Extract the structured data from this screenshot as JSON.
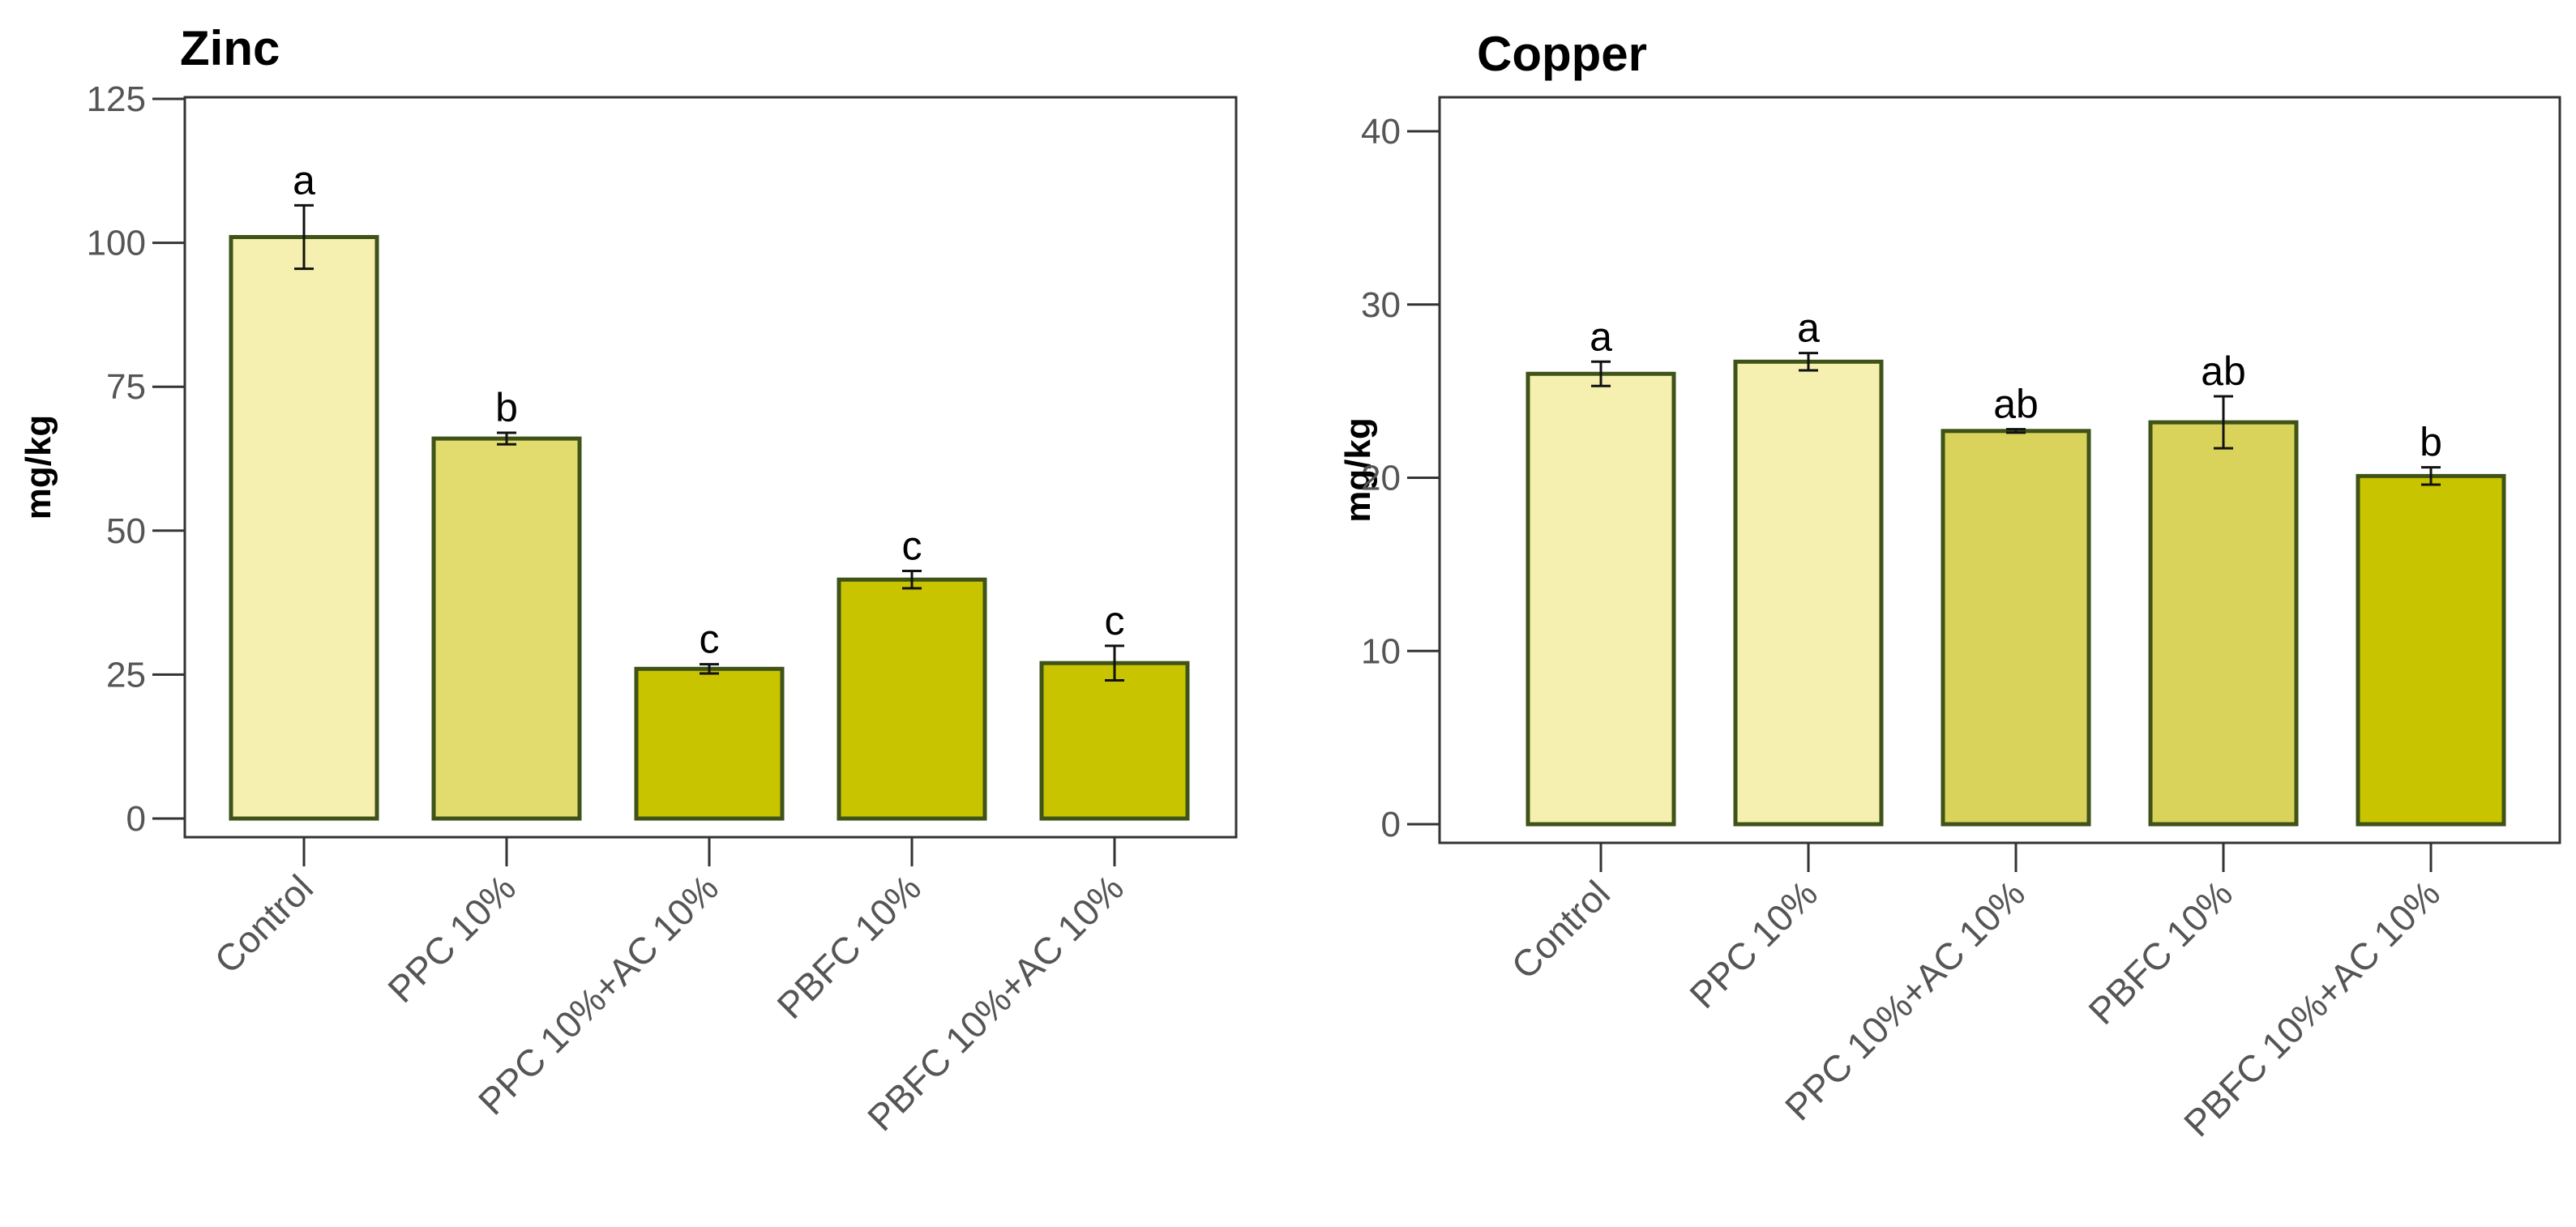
{
  "palette": {
    "lightest": "#f5f0b0",
    "light": "#e2dc6e",
    "mid": "#d9d35c",
    "dark": "#c8c400",
    "bar_stroke": "#3f5218",
    "frame": "#333333"
  },
  "chart_data": [
    {
      "type": "bar",
      "title": "Zinc",
      "ylabel": "mg/kg",
      "xlabel": "",
      "ylim": [
        0,
        125
      ],
      "yticks": [
        0,
        25,
        50,
        75,
        100,
        125
      ],
      "ytick_labels": [
        "0",
        "25",
        "50",
        "75",
        "100",
        "125"
      ],
      "categories": [
        "Control",
        "PPC 10%",
        "PPC 10%+AC 10%",
        "PBFC 10%",
        "PBFC 10%+AC 10%"
      ],
      "values": [
        101,
        66,
        26,
        41.5,
        27
      ],
      "errors": [
        5.5,
        1,
        0.8,
        1.5,
        3
      ],
      "significance": [
        "a",
        "b",
        "c",
        "c",
        "c"
      ],
      "bar_colors": [
        "lightest",
        "light",
        "dark",
        "dark",
        "dark"
      ],
      "grid": false,
      "legend": "none"
    },
    {
      "type": "bar",
      "title": "Copper",
      "ylabel": "mg/kg",
      "xlabel": "",
      "ylim": [
        0,
        42
      ],
      "yticks": [
        0,
        10,
        20,
        30,
        40
      ],
      "ytick_labels": [
        "0",
        "10",
        "20",
        "30",
        "40"
      ],
      "categories": [
        "Control",
        "PPC 10%",
        "PPC 10%+AC 10%",
        "PBFC 10%",
        "PBFC 10%+AC 10%"
      ],
      "values": [
        26,
        26.7,
        22.7,
        23.2,
        20.1
      ],
      "errors": [
        0.7,
        0.5,
        0.1,
        1.5,
        0.5
      ],
      "significance": [
        "a",
        "a",
        "ab",
        "ab",
        "b"
      ],
      "bar_colors": [
        "lightest",
        "lightest",
        "mid",
        "mid",
        "dark"
      ],
      "grid": false,
      "legend": "none"
    }
  ]
}
